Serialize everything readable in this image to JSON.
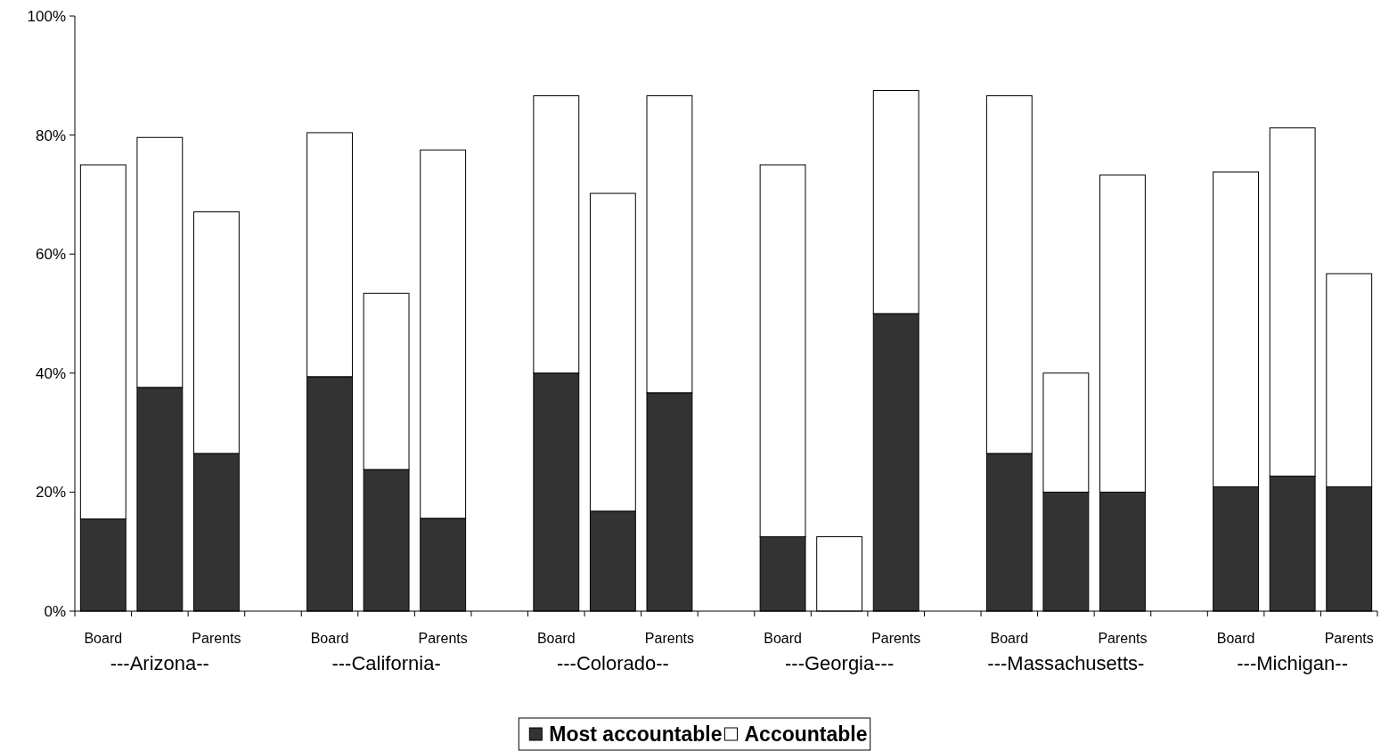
{
  "chart_data": {
    "type": "bar",
    "stacked": true,
    "categories": [
      "Board",
      null,
      "Parents",
      null,
      "Board",
      null,
      "Parents",
      null,
      "Board",
      null,
      "Parents",
      null,
      "Board",
      null,
      "Parents",
      null,
      "Board",
      null,
      "Parents",
      null,
      "Board",
      null,
      "Parents"
    ],
    "series": [
      {
        "name": "Most accountable",
        "color": "#333333",
        "values": [
          15.5,
          37.6,
          26.5,
          null,
          39.4,
          23.8,
          15.6,
          null,
          40,
          16.8,
          36.7,
          null,
          12.5,
          0,
          50,
          null,
          26.5,
          20,
          20,
          null,
          20.9,
          22.7,
          20.9
        ]
      },
      {
        "name": "Accountable",
        "color": "#ffffff",
        "values": [
          59.5,
          42,
          40.6,
          null,
          41,
          29.6,
          61.9,
          null,
          46.6,
          53.4,
          49.9,
          null,
          62.5,
          12.5,
          37.5,
          null,
          60.1,
          20,
          53.3,
          null,
          52.9,
          58.5,
          35.8
        ]
      }
    ],
    "ylim": [
      0,
      100
    ],
    "yticks": [
      {
        "value": 0,
        "label": "0%"
      },
      {
        "value": 20,
        "label": "20%"
      },
      {
        "value": 40,
        "label": "40%"
      },
      {
        "value": 60,
        "label": "60%"
      },
      {
        "value": 80,
        "label": "80%"
      },
      {
        "value": 100,
        "label": "100%"
      }
    ],
    "annotations": [
      "---Arizona--",
      "---California-",
      "---Colorado--",
      "---Georgia---",
      "---Massachusetts-",
      "---Michigan--"
    ],
    "grid": false,
    "legend": "bottom"
  }
}
